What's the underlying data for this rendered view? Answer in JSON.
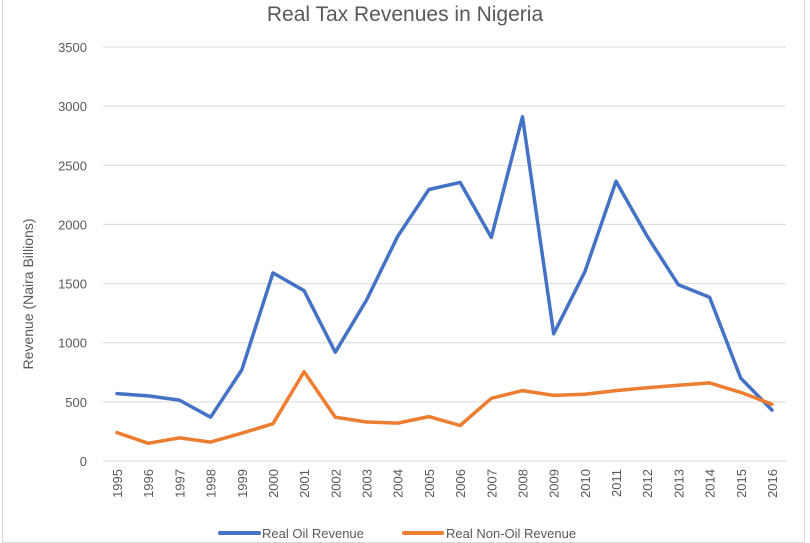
{
  "chart_data": {
    "type": "line",
    "title": "Real Tax Revenues in Nigeria",
    "xlabel": "",
    "ylabel": "Revenue (Naira Billions)",
    "ylim": [
      0,
      3500
    ],
    "yticks": [
      "0",
      "500",
      "1000",
      "1500",
      "2000",
      "2500",
      "3000",
      "3500"
    ],
    "ytick_values": [
      0,
      500,
      1000,
      1500,
      2000,
      2500,
      3000,
      3500
    ],
    "grid": true,
    "legend_position": "bottom",
    "categories": [
      "1995",
      "1996",
      "1997",
      "1998",
      "1999",
      "2000",
      "2001",
      "2002",
      "2003",
      "2004",
      "2005",
      "2006",
      "2007",
      "2008",
      "2009",
      "2010",
      "2011",
      "2012",
      "2013",
      "2014",
      "2015",
      "2016"
    ],
    "series": [
      {
        "name": "Real Oil Revenue",
        "color": "#4472c4",
        "values": [
          570,
          550,
          515,
          370,
          770,
          1590,
          1440,
          920,
          1360,
          1900,
          2295,
          2355,
          1890,
          2910,
          1075,
          1600,
          2365,
          1900,
          1490,
          1385,
          700,
          430
        ]
      },
      {
        "name": "Real Non-Oil Revenue",
        "color": "#ed7d31",
        "values": [
          240,
          150,
          195,
          160,
          235,
          315,
          755,
          370,
          330,
          320,
          375,
          300,
          530,
          595,
          555,
          565,
          595,
          620,
          640,
          660,
          580,
          480
        ]
      }
    ]
  }
}
